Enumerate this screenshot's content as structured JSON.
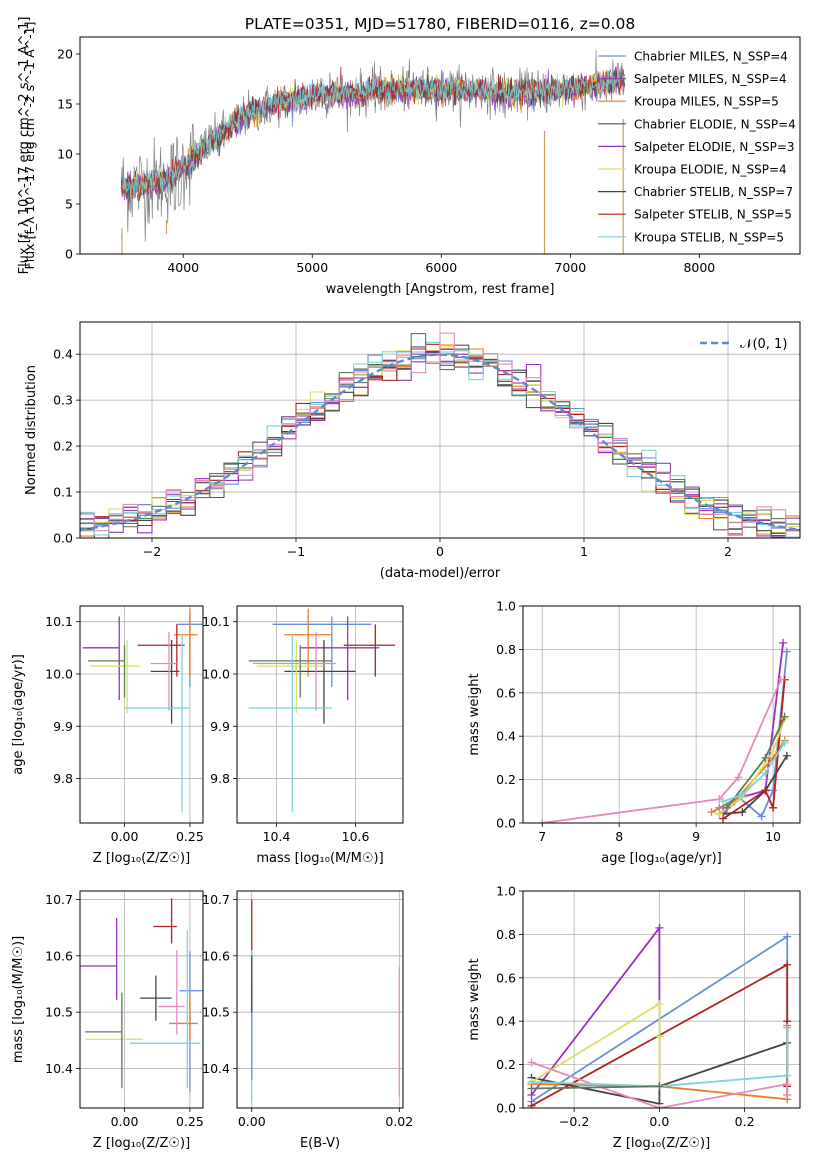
{
  "figure": {
    "title": "PLATE=0351, MJD=51780, FIBERID=0116, z=0.08"
  },
  "chart_data": [
    {
      "id": "spectrum",
      "type": "line",
      "xlabel": "wavelength [Angstrom, rest frame]",
      "ylabel": "Flux [f_λ 10^-17 erg cm^-2 s^-1 A^-1]",
      "xlim": [
        3200,
        8780
      ],
      "ylim": [
        0,
        21.7
      ],
      "xticks": [
        4000,
        5000,
        6000,
        7000,
        8000
      ],
      "yticks": [
        0,
        5,
        10,
        15,
        20
      ],
      "grid": false,
      "legend_position": "top-right",
      "legend": [
        {
          "name": "Chabrier MILES, N_SSP=4",
          "color": "#6a8ed8"
        },
        {
          "name": "Salpeter MILES, N_SSP=4",
          "color": "#8e44ad"
        },
        {
          "name": "Kroupa MILES, N_SSP=5",
          "color": "#e67e22"
        },
        {
          "name": "Chabrier ELODIE, N_SSP=4",
          "color": "#555555"
        },
        {
          "name": "Salpeter ELODIE, N_SSP=3",
          "color": "#9b30c0"
        },
        {
          "name": "Kroupa ELODIE, N_SSP=4",
          "color": "#d8e060"
        },
        {
          "name": "Chabrier STELIB, N_SSP=7",
          "color": "#444444"
        },
        {
          "name": "Salpeter STELIB, N_SSP=5",
          "color": "#b22222"
        },
        {
          "name": "Kroupa STELIB, N_SSP=5",
          "color": "#7ed3d8"
        }
      ],
      "continuum_x": [
        3500,
        3700,
        3900,
        4100,
        4300,
        4500,
        4700,
        4900,
        5100,
        5300,
        5500,
        5700,
        5900,
        6100,
        6300,
        6500,
        6700,
        6900,
        7100,
        7300,
        7400
      ],
      "continuum_y": [
        6.5,
        7.0,
        7.5,
        10.0,
        12.0,
        14.0,
        15.0,
        15.5,
        16.0,
        16.0,
        16.3,
        16.5,
        16.5,
        16.4,
        16.5,
        16.0,
        16.2,
        16.4,
        16.6,
        17.0,
        17.5
      ]
    },
    {
      "id": "residuals",
      "type": "histogram",
      "xlabel": "(data-model)/error",
      "ylabel": "Normed distribution",
      "xlim": [
        -2.5,
        2.5
      ],
      "ylim": [
        0,
        0.47
      ],
      "xticks": [
        -2,
        -1,
        0,
        1,
        2
      ],
      "xtick_labels": [
        "−2",
        "−1",
        "0",
        "1",
        "2"
      ],
      "yticks": [
        0.0,
        0.1,
        0.2,
        0.3,
        0.4
      ],
      "ytick_labels": [
        "0.0",
        "0.1",
        "0.2",
        "0.3",
        "0.4"
      ],
      "grid": true,
      "legend_position": "top-right",
      "normal_curve": {
        "label": "𝒩(0, 1)",
        "mu": 0,
        "sigma": 1,
        "color": "#5b8ad6"
      },
      "bin_width": 0.1
    },
    {
      "id": "age-vs-Z",
      "type": "scatter",
      "xlabel": "Z [log₁₀(Z/Z☉)]",
      "ylabel": "age  [log₁₀(age/yr)]",
      "xlim": [
        -0.17,
        0.3
      ],
      "ylim": [
        9.715,
        10.13
      ],
      "xticks": [
        0.0,
        0.25
      ],
      "xtick_labels": [
        "0.00",
        "0.25"
      ],
      "yticks": [
        9.8,
        9.9,
        10.0,
        10.1
      ],
      "ytick_labels": [
        "9.8",
        "9.9",
        "10.0",
        "10.1"
      ],
      "grid": true,
      "points": [
        {
          "x": 0.25,
          "xerr": [
            0.05,
            0.05
          ],
          "y": 10.095,
          "yerr": [
            0.12,
            0.015
          ],
          "color": "#6a8ed8"
        },
        {
          "x": -0.02,
          "xerr": [
            0.14,
            0.0
          ],
          "y": 10.05,
          "yerr": [
            0.1,
            0.06
          ],
          "color": "#9b30c0"
        },
        {
          "x": 0.25,
          "xerr": [
            0.06,
            0.03
          ],
          "y": 10.075,
          "yerr": [
            0.08,
            0.05
          ],
          "color": "#e67e22"
        },
        {
          "x": 0.18,
          "xerr": [
            0.08,
            0.03
          ],
          "y": 10.005,
          "yerr": [
            0.1,
            0.06
          ],
          "color": "#444444"
        },
        {
          "x": 0.2,
          "xerr": [
            0.15,
            0.03
          ],
          "y": 10.055,
          "yerr": [
            0.06,
            0.04
          ],
          "color": "#b22222"
        },
        {
          "x": 0.01,
          "xerr": [
            0.14,
            0.05
          ],
          "y": 10.015,
          "yerr": [
            0.09,
            0.05
          ],
          "color": "#d8e060"
        },
        {
          "x": 0.0,
          "xerr": [
            0.14,
            0.0
          ],
          "y": 10.025,
          "yerr": [
            0.07,
            0.03
          ],
          "color": "#5c7a5c"
        },
        {
          "x": 0.17,
          "xerr": [
            0.07,
            0.03
          ],
          "y": 10.02,
          "yerr": [
            0.09,
            0.06
          ],
          "color": "#e28bbf"
        },
        {
          "x": 0.22,
          "xerr": [
            0.22,
            0.03
          ],
          "y": 9.935,
          "yerr": [
            0.2,
            0.14
          ],
          "color": "#7ed3d8"
        }
      ]
    },
    {
      "id": "age-vs-mass",
      "type": "scatter",
      "xlabel": "mass [log₁₀(M/M☉)]",
      "ylabel": "",
      "xlim": [
        10.3,
        10.72
      ],
      "ylim": [
        9.715,
        10.13
      ],
      "xticks": [
        10.4,
        10.6
      ],
      "xtick_labels": [
        "10.4",
        "10.6"
      ],
      "yticks": [
        9.8,
        9.9,
        10.0,
        10.1
      ],
      "ytick_labels": [
        "9.8",
        "9.9",
        "10.0",
        "10.1"
      ],
      "grid": true,
      "points": [
        {
          "x": 10.54,
          "xerr": [
            0.15,
            0.1
          ],
          "y": 10.095,
          "yerr": [
            0.12,
            0.015
          ],
          "color": "#6a8ed8"
        },
        {
          "x": 10.58,
          "xerr": [
            0.12,
            0.08
          ],
          "y": 10.05,
          "yerr": [
            0.1,
            0.06
          ],
          "color": "#9b30c0"
        },
        {
          "x": 10.48,
          "xerr": [
            0.06,
            0.06
          ],
          "y": 10.075,
          "yerr": [
            0.08,
            0.05
          ],
          "color": "#e67e22"
        },
        {
          "x": 10.52,
          "xerr": [
            0.1,
            0.08
          ],
          "y": 10.005,
          "yerr": [
            0.1,
            0.06
          ],
          "color": "#444444"
        },
        {
          "x": 10.65,
          "xerr": [
            0.08,
            0.05
          ],
          "y": 10.055,
          "yerr": [
            0.06,
            0.04
          ],
          "color": "#b22222"
        },
        {
          "x": 10.45,
          "xerr": [
            0.1,
            0.07
          ],
          "y": 10.015,
          "yerr": [
            0.09,
            0.05
          ],
          "color": "#d8e060"
        },
        {
          "x": 10.46,
          "xerr": [
            0.13,
            0.08
          ],
          "y": 10.025,
          "yerr": [
            0.07,
            0.03
          ],
          "color": "#5c7a5c"
        },
        {
          "x": 10.5,
          "xerr": [
            0.16,
            0.05
          ],
          "y": 10.02,
          "yerr": [
            0.09,
            0.06
          ],
          "color": "#e28bbf"
        },
        {
          "x": 10.44,
          "xerr": [
            0.11,
            0.1
          ],
          "y": 9.935,
          "yerr": [
            0.2,
            0.14
          ],
          "color": "#7ed3d8"
        }
      ]
    },
    {
      "id": "weight-vs-age",
      "type": "line",
      "xlabel": "age  [log₁₀(age/yr)]",
      "ylabel": "mass weight",
      "xlim": [
        6.75,
        10.35
      ],
      "ylim": [
        0,
        1.0
      ],
      "xticks": [
        7,
        8,
        9,
        10
      ],
      "xtick_labels": [
        "7",
        "8",
        "9",
        "10"
      ],
      "yticks": [
        0.0,
        0.2,
        0.4,
        0.6,
        0.8,
        1.0
      ],
      "ytick_labels": [
        "0.0",
        "0.2",
        "0.4",
        "0.6",
        "0.8",
        "1.0"
      ],
      "grid": true,
      "series": [
        {
          "color": "#6a8ed8",
          "x": [
            9.3,
            9.55,
            9.85,
            10.0,
            10.18
          ],
          "y": [
            0.07,
            0.12,
            0.03,
            0.15,
            0.79
          ]
        },
        {
          "color": "#9b30c0",
          "x": [
            9.35,
            9.6,
            9.9,
            10.13
          ],
          "y": [
            0.05,
            0.12,
            0.15,
            0.83
          ]
        },
        {
          "color": "#e67e22",
          "x": [
            9.2,
            9.5,
            10.0,
            10.15
          ],
          "y": [
            0.05,
            0.1,
            0.3,
            0.38
          ]
        },
        {
          "color": "#444444",
          "x": [
            9.3,
            9.6,
            9.9,
            10.18
          ],
          "y": [
            0.04,
            0.05,
            0.15,
            0.31
          ]
        },
        {
          "color": "#b22222",
          "x": [
            9.35,
            9.9,
            10.0,
            10.15
          ],
          "y": [
            0.02,
            0.15,
            0.07,
            0.66
          ]
        },
        {
          "color": "#d8e060",
          "x": [
            9.3,
            9.6,
            10.0,
            10.15
          ],
          "y": [
            0.04,
            0.12,
            0.33,
            0.48
          ]
        },
        {
          "color": "#5c7a5c",
          "x": [
            9.4,
            9.9,
            10.15
          ],
          "y": [
            0.07,
            0.3,
            0.49
          ]
        },
        {
          "color": "#e28bbf",
          "x": [
            7.0,
            9.3,
            9.55,
            10.1
          ],
          "y": [
            0.0,
            0.11,
            0.21,
            0.66
          ]
        },
        {
          "color": "#7ed3d8",
          "x": [
            9.35,
            9.6,
            9.9,
            10.15
          ],
          "y": [
            0.1,
            0.13,
            0.23,
            0.37
          ]
        }
      ]
    },
    {
      "id": "mass-vs-Z",
      "type": "scatter",
      "xlabel": "Z [log₁₀(Z/Z☉)]",
      "ylabel": "mass [log₁₀(M/M☉)]",
      "xlim": [
        -0.17,
        0.3
      ],
      "ylim": [
        10.33,
        10.715
      ],
      "xticks": [
        0.0,
        0.25
      ],
      "xtick_labels": [
        "0.00",
        "0.25"
      ],
      "yticks": [
        10.4,
        10.5,
        10.6,
        10.7
      ],
      "ytick_labels": [
        "10.4",
        "10.5",
        "10.6",
        "10.7"
      ],
      "grid": true,
      "points": [
        {
          "x": 0.25,
          "xerr": [
            0.04,
            0.05
          ],
          "y": 10.538,
          "yerr": [
            0.18,
            0.07
          ],
          "color": "#6a8ed8"
        },
        {
          "x": -0.03,
          "xerr": [
            0.14,
            0.0
          ],
          "y": 10.582,
          "yerr": [
            0.06,
            0.085
          ],
          "color": "#9b30c0"
        },
        {
          "x": 0.25,
          "xerr": [
            0.08,
            0.03
          ],
          "y": 10.48,
          "yerr": [
            0.03,
            0.05
          ],
          "color": "#e67e22"
        },
        {
          "x": 0.12,
          "xerr": [
            0.06,
            0.06
          ],
          "y": 10.525,
          "yerr": [
            0.04,
            0.04
          ],
          "color": "#444444"
        },
        {
          "x": 0.18,
          "xerr": [
            0.07,
            0.02
          ],
          "y": 10.652,
          "yerr": [
            0.03,
            0.05
          ],
          "color": "#b22222"
        },
        {
          "x": -0.01,
          "xerr": [
            0.14,
            0.08
          ],
          "y": 10.452,
          "yerr": [
            0.07,
            0.08
          ],
          "color": "#d8e060"
        },
        {
          "x": -0.01,
          "xerr": [
            0.14,
            0.0
          ],
          "y": 10.465,
          "yerr": [
            0.1,
            0.07
          ],
          "color": "#5c7a5c"
        },
        {
          "x": 0.2,
          "xerr": [
            0.07,
            0.03
          ],
          "y": 10.51,
          "yerr": [
            0.05,
            0.1
          ],
          "color": "#e28bbf"
        },
        {
          "x": 0.24,
          "xerr": [
            0.22,
            0.05
          ],
          "y": 10.445,
          "yerr": [
            0.08,
            0.2
          ],
          "color": "#7ed3d8"
        }
      ]
    },
    {
      "id": "mass-vs-EBV",
      "type": "scatter",
      "xlabel": "E(B-V)",
      "ylabel": "",
      "xlim": [
        -0.002,
        0.0205
      ],
      "ylim": [
        10.33,
        10.715
      ],
      "xticks": [
        0.0,
        0.02
      ],
      "xtick_labels": [
        "0.00",
        "0.02"
      ],
      "yticks": [
        10.4,
        10.5,
        10.6,
        10.7
      ],
      "ytick_labels": [
        "10.4",
        "10.5",
        "10.6",
        "10.7"
      ],
      "grid": true,
      "points": [
        {
          "x": 0.0,
          "y": 10.56,
          "yerr": [
            0.09,
            0.14
          ],
          "color": "#b22222"
        },
        {
          "x": 0.0,
          "y": 10.5,
          "yerr": [
            0.16,
            0.11
          ],
          "color": "#7ed3d8"
        },
        {
          "x": 0.0,
          "y": 10.48,
          "yerr": [
            0.1,
            0.08
          ],
          "color": "#6a8ed8"
        },
        {
          "x": 0.0,
          "y": 10.55,
          "yerr": [
            0.05,
            0.05
          ],
          "color": "#444444"
        },
        {
          "x": 0.02,
          "y": 10.48,
          "yerr": [
            0.13,
            0.1
          ],
          "color": "#e28bbf"
        }
      ]
    },
    {
      "id": "weight-vs-Z",
      "type": "line",
      "xlabel": "Z [log₁₀(Z/Z☉)]",
      "ylabel": "mass weight",
      "xlim": [
        -0.32,
        0.33
      ],
      "ylim": [
        0,
        1.0
      ],
      "xticks": [
        -0.2,
        0.0,
        0.2
      ],
      "xtick_labels": [
        "−0.2",
        "0.0",
        "0.2"
      ],
      "yticks": [
        0.0,
        0.2,
        0.4,
        0.6,
        0.8,
        1.0
      ],
      "ytick_labels": [
        "0.0",
        "0.2",
        "0.4",
        "0.6",
        "0.8",
        "1.0"
      ],
      "grid": true,
      "series": [
        {
          "color": "#6a8ed8",
          "x": [
            -0.3,
            0.3,
            0.3
          ],
          "y": [
            0.03,
            0.79,
            0.06
          ]
        },
        {
          "color": "#9b30c0",
          "x": [
            -0.3,
            0.0,
            0.0
          ],
          "y": [
            0.06,
            0.83,
            0.1
          ]
        },
        {
          "color": "#e67e22",
          "x": [
            -0.3,
            0.0,
            0.3,
            0.3
          ],
          "y": [
            0.11,
            0.1,
            0.04,
            0.38
          ]
        },
        {
          "color": "#444444",
          "x": [
            -0.3,
            0.0,
            0.0,
            0.3
          ],
          "y": [
            0.14,
            0.02,
            0.1,
            0.3
          ]
        },
        {
          "color": "#b22222",
          "x": [
            -0.3,
            0.3,
            0.3,
            0.3
          ],
          "y": [
            0.01,
            0.66,
            0.4,
            0.1
          ]
        },
        {
          "color": "#d8e060",
          "x": [
            -0.3,
            0.0,
            0.0,
            0.0
          ],
          "y": [
            0.12,
            0.48,
            0.1,
            0.33
          ]
        },
        {
          "color": "#e28bbf",
          "x": [
            -0.3,
            0.0,
            0.3,
            0.3
          ],
          "y": [
            0.21,
            0.0,
            0.11,
            0.06
          ]
        },
        {
          "color": "#7ed3d8",
          "x": [
            -0.3,
            0.0,
            0.3,
            0.3
          ],
          "y": [
            0.12,
            0.1,
            0.15,
            0.37
          ]
        },
        {
          "color": "#5c7a5c",
          "x": [
            -0.3,
            0.0
          ],
          "y": [
            0.09,
            0.1
          ]
        }
      ]
    }
  ]
}
